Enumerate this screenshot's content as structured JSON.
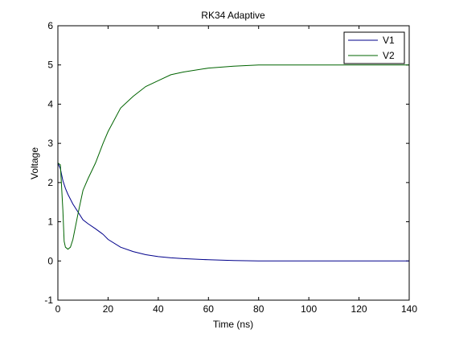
{
  "chart_data": {
    "type": "line",
    "title": "RK34 Adaptive",
    "xlabel": "Time (ns)",
    "ylabel": "Voltage",
    "xlim": [
      0,
      140
    ],
    "ylim": [
      -1,
      6
    ],
    "xticks": [
      0,
      20,
      40,
      60,
      80,
      100,
      120,
      140
    ],
    "yticks": [
      -1,
      0,
      1,
      2,
      3,
      4,
      5,
      6
    ],
    "grid": false,
    "legend_position": "top-right",
    "series": [
      {
        "name": "V1",
        "color": "#00008B",
        "x": [
          0,
          1,
          2,
          3,
          4,
          6,
          8,
          10,
          12,
          15,
          18,
          20,
          25,
          30,
          35,
          40,
          45,
          50,
          60,
          70,
          80,
          100,
          120,
          140
        ],
        "y": [
          2.5,
          2.35,
          2.05,
          1.85,
          1.7,
          1.45,
          1.25,
          1.05,
          0.95,
          0.82,
          0.68,
          0.55,
          0.35,
          0.24,
          0.16,
          0.11,
          0.08,
          0.06,
          0.03,
          0.01,
          0.0,
          0.0,
          0.0,
          0.0
        ]
      },
      {
        "name": "V2",
        "color": "#006400",
        "x": [
          0,
          1,
          2,
          2.5,
          3,
          4,
          5,
          6,
          8,
          10,
          12,
          15,
          18,
          20,
          25,
          30,
          35,
          40,
          45,
          50,
          60,
          70,
          80,
          90,
          100,
          120,
          140
        ],
        "y": [
          2.5,
          2.45,
          1.3,
          0.5,
          0.35,
          0.3,
          0.35,
          0.55,
          1.2,
          1.8,
          2.1,
          2.5,
          3.0,
          3.3,
          3.9,
          4.2,
          4.45,
          4.6,
          4.75,
          4.82,
          4.92,
          4.97,
          5.0,
          5.0,
          5.0,
          5.0,
          5.0
        ]
      }
    ]
  }
}
